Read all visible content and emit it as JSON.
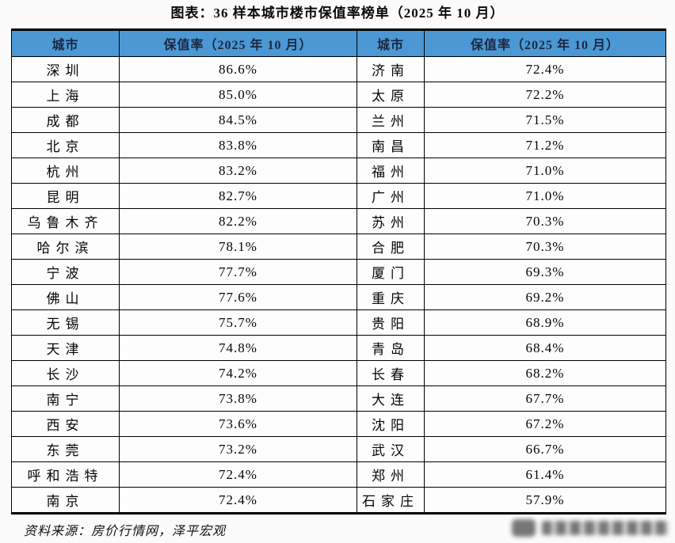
{
  "colors": {
    "header_bg": "#4b98d4",
    "header_text": "#1a2742",
    "border": "#000000",
    "page_bg": "#fbfbfb"
  },
  "chart_data": {
    "type": "table",
    "title": "图表：36 样本城市楼市保值率榜单（2025 年 10 月）",
    "columns": [
      "城市",
      "保值率（2025 年 10 月）",
      "城市",
      "保值率（2025 年 10 月）"
    ],
    "rows": [
      [
        "深圳",
        "86.6%",
        "济南",
        "72.4%"
      ],
      [
        "上海",
        "85.0%",
        "太原",
        "72.2%"
      ],
      [
        "成都",
        "84.5%",
        "兰州",
        "71.5%"
      ],
      [
        "北京",
        "83.8%",
        "南昌",
        "71.2%"
      ],
      [
        "杭州",
        "83.2%",
        "福州",
        "71.0%"
      ],
      [
        "昆明",
        "82.7%",
        "广州",
        "71.0%"
      ],
      [
        "乌鲁木齐",
        "82.2%",
        "苏州",
        "70.3%"
      ],
      [
        "哈尔滨",
        "78.1%",
        "合肥",
        "70.3%"
      ],
      [
        "宁波",
        "77.7%",
        "厦门",
        "69.3%"
      ],
      [
        "佛山",
        "77.6%",
        "重庆",
        "69.2%"
      ],
      [
        "无锡",
        "75.7%",
        "贵阳",
        "68.9%"
      ],
      [
        "天津",
        "74.8%",
        "青岛",
        "68.4%"
      ],
      [
        "长沙",
        "74.2%",
        "长春",
        "68.2%"
      ],
      [
        "南宁",
        "73.8%",
        "大连",
        "67.7%"
      ],
      [
        "西安",
        "73.6%",
        "沈阳",
        "67.2%"
      ],
      [
        "东莞",
        "73.2%",
        "武汉",
        "66.7%"
      ],
      [
        "呼和浩特",
        "72.4%",
        "郑州",
        "61.4%"
      ],
      [
        "南京",
        "72.4%",
        "石家庄",
        "57.9%"
      ]
    ],
    "source": "资料来源：房价行情网，泽平宏观"
  }
}
